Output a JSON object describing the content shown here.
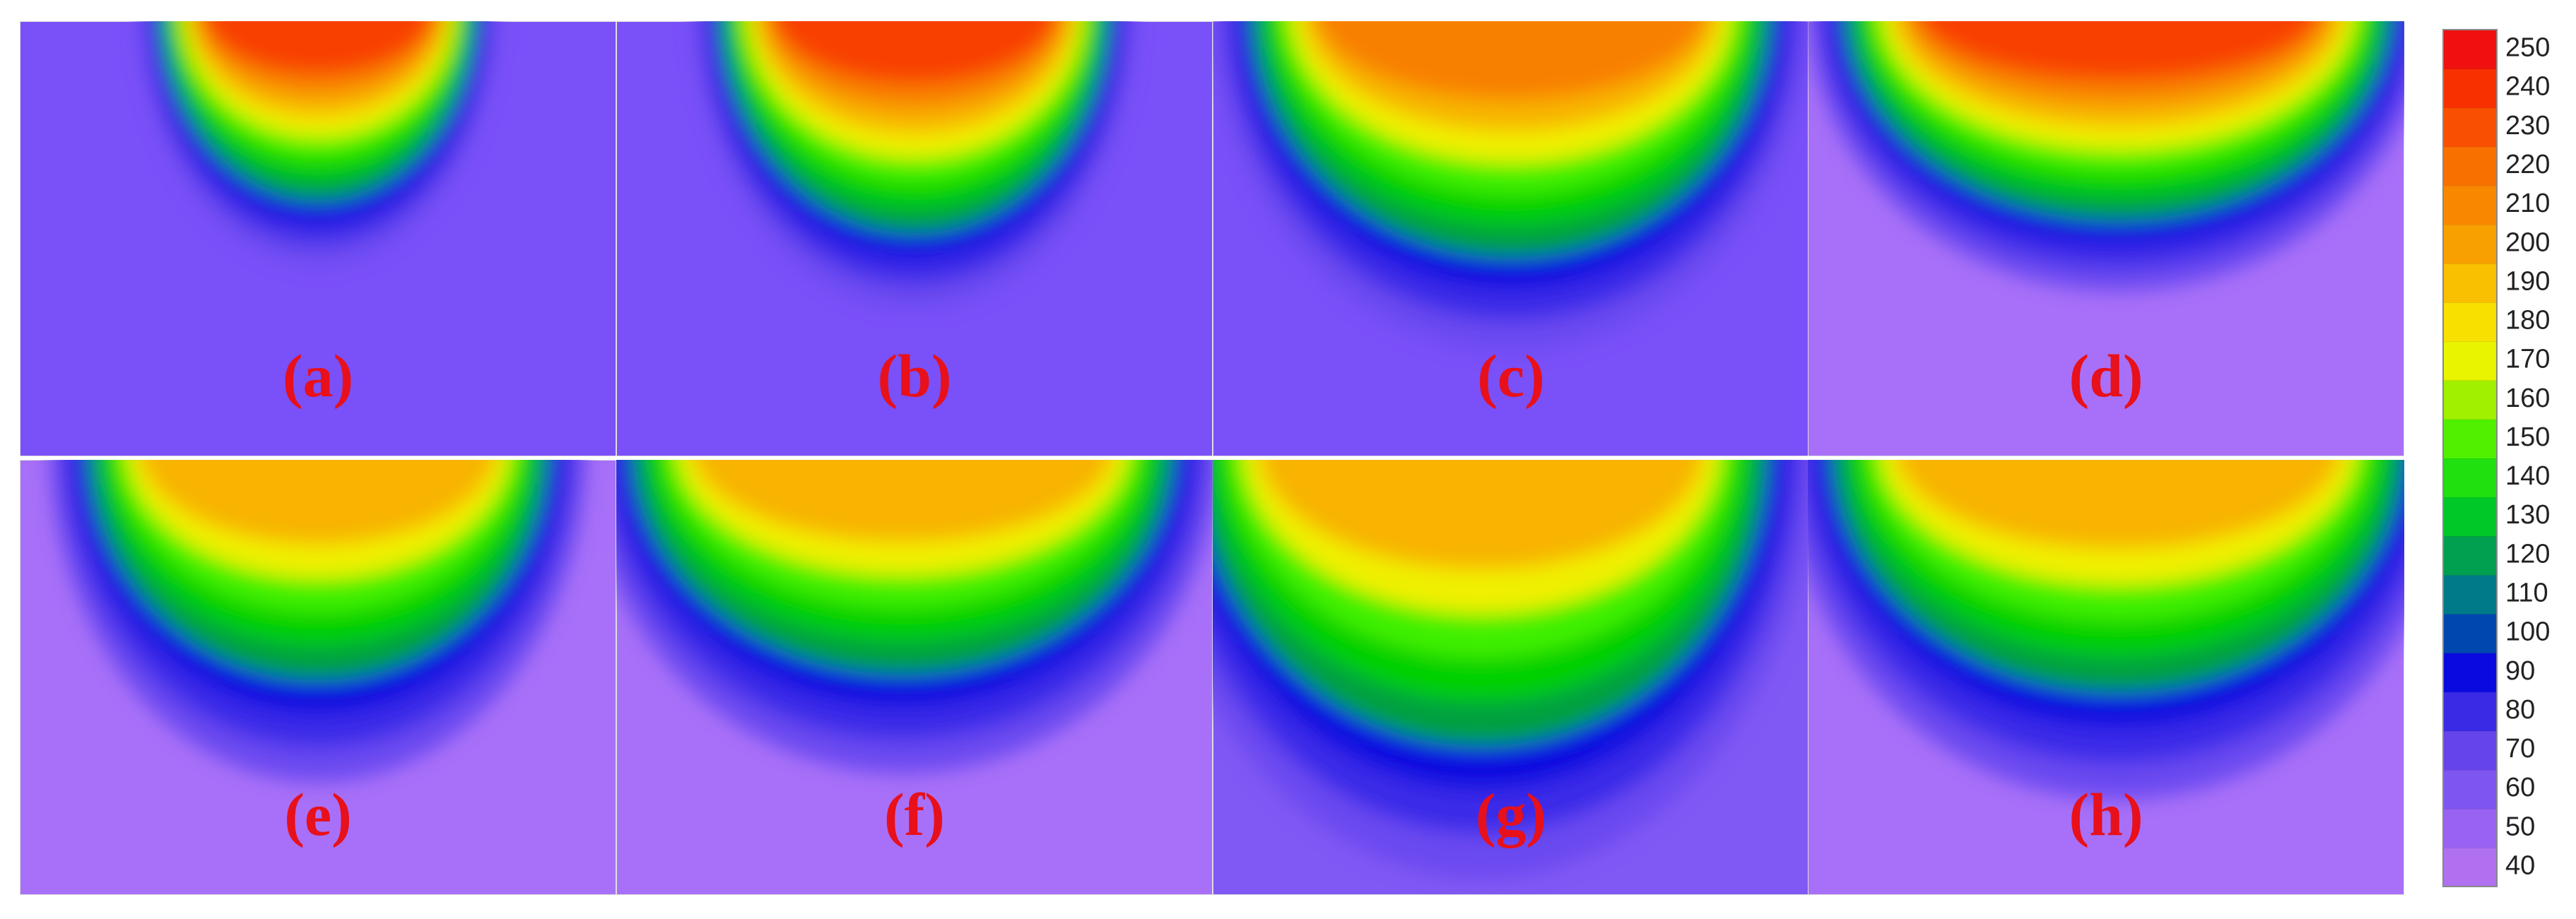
{
  "panels": [
    {
      "label": "(a)"
    },
    {
      "label": "(b)"
    },
    {
      "label": "(c)"
    },
    {
      "label": "(d)"
    },
    {
      "label": "(e)"
    },
    {
      "label": "(f)"
    },
    {
      "label": "(g)"
    },
    {
      "label": "(h)"
    }
  ],
  "colorbar": {
    "ticks": [
      40,
      50,
      60,
      70,
      80,
      90,
      100,
      110,
      120,
      130,
      140,
      150,
      160,
      170,
      180,
      190,
      200,
      210,
      220,
      230,
      240,
      250
    ],
    "colors": [
      "#b070f0",
      "#9a62f2",
      "#7e55f0",
      "#6644ec",
      "#3a2ae6",
      "#0a0ae0",
      "#0048b0",
      "#007a88",
      "#00a050",
      "#00c828",
      "#20e010",
      "#50f000",
      "#a0f000",
      "#e8f400",
      "#f8e000",
      "#f8c000",
      "#f8a000",
      "#f88800",
      "#f87000",
      "#f85000",
      "#f83000",
      "#f01010"
    ]
  }
}
